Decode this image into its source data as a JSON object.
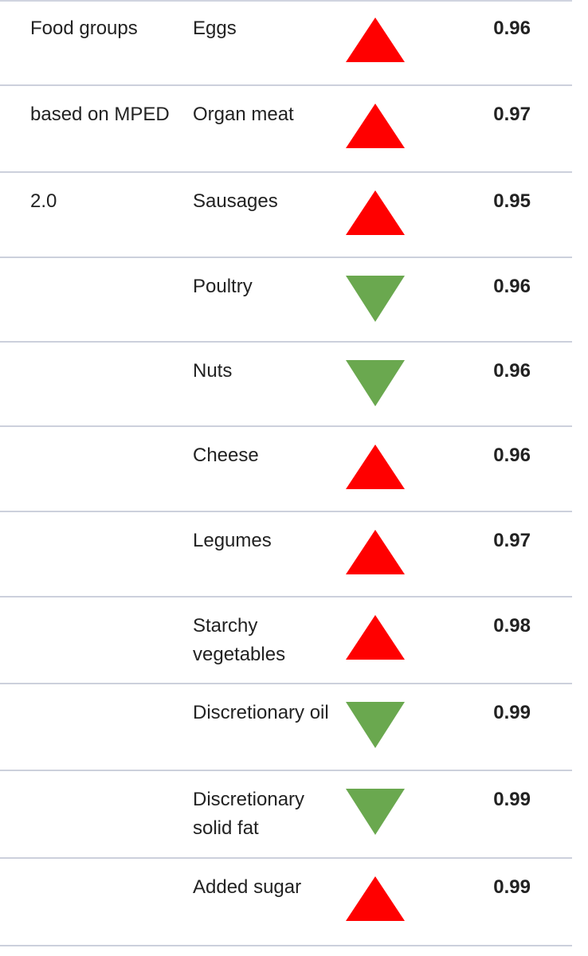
{
  "colors": {
    "up": "#ff0000",
    "down": "#6aa84f",
    "rule": "#ccd0dc"
  },
  "rows": [
    {
      "group": "Food groups",
      "name": "Eggs",
      "direction": "up",
      "value": "0.96"
    },
    {
      "group": "based on MPED",
      "name": "Organ meat",
      "direction": "up",
      "value": "0.97"
    },
    {
      "group": "2.0",
      "name": "Sausages",
      "direction": "up",
      "value": "0.95"
    },
    {
      "group": "",
      "name": "Poultry",
      "direction": "down",
      "value": "0.96"
    },
    {
      "group": "",
      "name": "Nuts",
      "direction": "down",
      "value": "0.96"
    },
    {
      "group": "",
      "name": "Cheese",
      "direction": "up",
      "value": "0.96"
    },
    {
      "group": "",
      "name": "Legumes",
      "direction": "up",
      "value": "0.97"
    },
    {
      "group": "",
      "name": "Starchy vegetables",
      "direction": "up",
      "value": "0.98"
    },
    {
      "group": "",
      "name": "Discretionary oil",
      "direction": "down",
      "value": "0.99"
    },
    {
      "group": "",
      "name": "Discretionary solid fat",
      "direction": "down",
      "value": "0.99"
    },
    {
      "group": "",
      "name": "Added sugar",
      "direction": "up",
      "value": "0.99"
    }
  ]
}
